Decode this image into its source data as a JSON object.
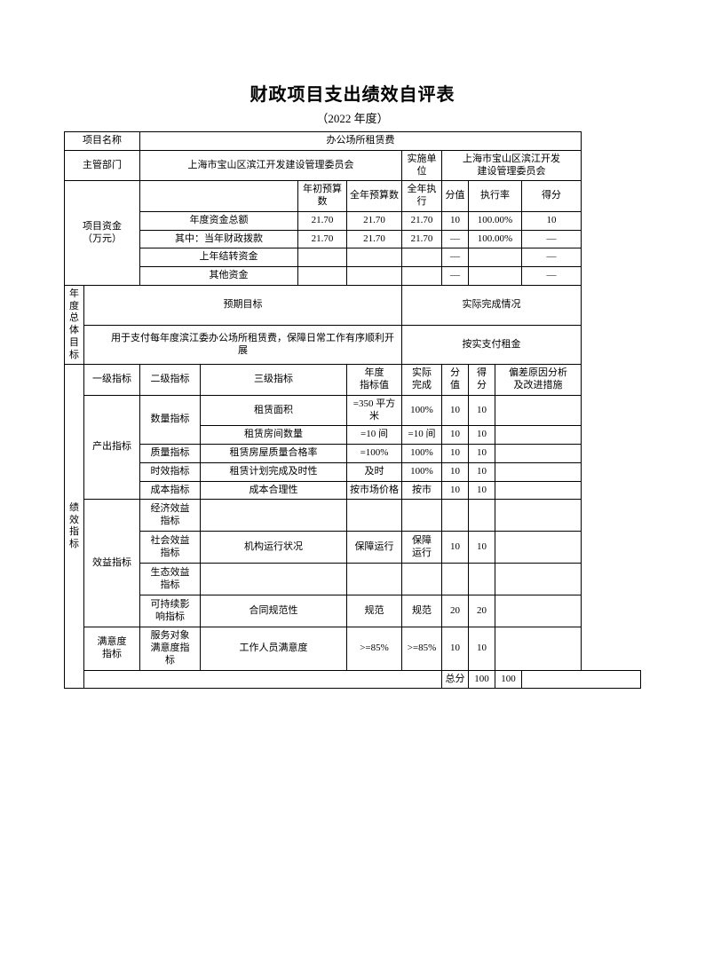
{
  "title": "财政项目支出绩效自评表",
  "subtitle": "（2022 年度）",
  "labels": {
    "projectName": "项目名称",
    "dept": "主管部门",
    "implUnit": "实施单位",
    "funds": "项目资金\n（万元）",
    "yearStartBudget": "年初预算数",
    "yearBudget": "全年预算数",
    "yearExec": "全年执行",
    "score": "分值",
    "execRate": "执行率",
    "points": "得分",
    "fundTotal": "年度资金总额",
    "fundCurrent": "其中：当年财政拨款",
    "fundCarry": "　　上年结转资金",
    "fundOther": "　　其他资金",
    "expected": "预期目标",
    "actualStatus": "实际完成情况",
    "yearGoal": "年度\n总体\n目标",
    "perf": "绩\n效\n指\n标",
    "lv1": "一级指标",
    "lv2": "二级指标",
    "lv3": "三级指标",
    "targetVal": "年度\n指标值",
    "actual": "实际\n完成",
    "scoreVal": "分\n值",
    "gotScore": "得\n分",
    "reason": "偏差原因分析\n及改进措施",
    "sumLabel": "总分"
  },
  "project": {
    "name": "办公场所租赁费",
    "dept": "上海市宝山区滨江开发建设管理委员会",
    "implUnit": "上海市宝山区滨江开发\n建设管理委员会"
  },
  "funds": {
    "total": {
      "start": "21.70",
      "year": "21.70",
      "exec": "21.70",
      "score": "10",
      "rate": "100.00%",
      "pts": "10"
    },
    "current": {
      "start": "21.70",
      "year": "21.70",
      "exec": "21.70",
      "score": "—",
      "rate": "100.00%",
      "pts": "—"
    },
    "carry": {
      "start": "",
      "year": "",
      "exec": "",
      "score": "—",
      "rate": "",
      "pts": "—"
    },
    "other": {
      "start": "",
      "year": "",
      "exec": "",
      "score": "—",
      "rate": "",
      "pts": "—"
    }
  },
  "goal": {
    "expected": "　　用于支付每年度滨江委办公场所租赁费，保障日常工作有序顺利开展",
    "actual": "按实支付租金"
  },
  "indicators": {
    "output": {
      "lv1": "产出指标",
      "groups": [
        {
          "lv2": "数量指标",
          "items": [
            {
              "lv3": "租赁面积",
              "target": "=350 平方米",
              "actual": "100%",
              "score": "10",
              "got": "10",
              "reason": ""
            },
            {
              "lv3": "租赁房间数量",
              "target": "=10 间",
              "actual": "=10 间",
              "score": "10",
              "got": "10",
              "reason": ""
            }
          ]
        },
        {
          "lv2": "质量指标",
          "items": [
            {
              "lv3": "租赁房屋质量合格率",
              "target": "=100%",
              "actual": "100%",
              "score": "10",
              "got": "10",
              "reason": ""
            }
          ]
        },
        {
          "lv2": "时效指标",
          "items": [
            {
              "lv3": "租赁计划完成及时性",
              "target": "及时",
              "actual": "100%",
              "score": "10",
              "got": "10",
              "reason": ""
            }
          ]
        },
        {
          "lv2": "成本指标",
          "items": [
            {
              "lv3": "成本合理性",
              "target": "按市场价格",
              "actual": "按市",
              "score": "10",
              "got": "10",
              "reason": ""
            }
          ]
        }
      ]
    },
    "benefit": {
      "lv1": "效益指标",
      "groups": [
        {
          "lv2": "经济效益\n指标",
          "items": [
            {
              "lv3": "",
              "target": "",
              "actual": "",
              "score": "",
              "got": "",
              "reason": ""
            }
          ]
        },
        {
          "lv2": "社会效益\n指标",
          "items": [
            {
              "lv3": "机构运行状况",
              "target": "保障运行",
              "actual": "保障\n运行",
              "score": "10",
              "got": "10",
              "reason": ""
            }
          ]
        },
        {
          "lv2": "生态效益\n指标",
          "items": [
            {
              "lv3": "",
              "target": "",
              "actual": "",
              "score": "",
              "got": "",
              "reason": ""
            }
          ]
        },
        {
          "lv2": "可持续影\n响指标",
          "items": [
            {
              "lv3": "合同规范性",
              "target": "规范",
              "actual": "规范",
              "score": "20",
              "got": "20",
              "reason": ""
            }
          ]
        }
      ]
    },
    "satisfaction": {
      "lv1": "满意度\n指标",
      "groups": [
        {
          "lv2": "服务对象\n满意度指\n标",
          "items": [
            {
              "lv3": "工作人员满意度",
              "target": ">=85%",
              "actual": ">=85%",
              "score": "10",
              "got": "10",
              "reason": ""
            }
          ]
        }
      ]
    }
  },
  "total": {
    "score": "100",
    "got": "100"
  }
}
